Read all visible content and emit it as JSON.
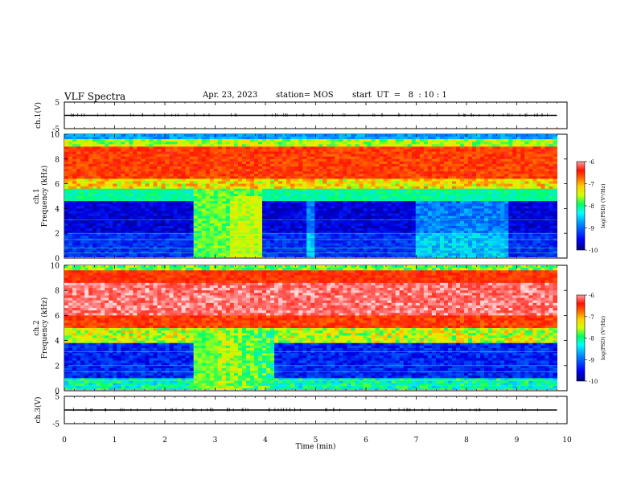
{
  "header": {
    "title": "VLF Spectra",
    "date": "Apr. 23, 2023",
    "station": "station= MOS",
    "start": "start  UT  =   8  : 10 : 1"
  },
  "chart_data": [
    {
      "type": "line",
      "panel": "ch1-voltage",
      "ylabel": "ch.1(V)",
      "ylim": [
        -5,
        5
      ],
      "yticks": [
        "5",
        "-5"
      ],
      "xlim": [
        0,
        10
      ],
      "series": [
        {
          "values_level": 0
        }
      ]
    },
    {
      "type": "heatmap",
      "panel": "ch1-spectrogram",
      "ylabel": "ch.1\nFrequency (kHz)",
      "ylabel_lines": [
        "ch.1",
        "Frequency (kHz)"
      ],
      "ylim": [
        0,
        10
      ],
      "yticks": [
        "0",
        "2",
        "4",
        "6",
        "8",
        "10"
      ],
      "xlim": [
        0,
        10
      ],
      "data_end_min": 9.8,
      "colorbar": {
        "label": "log(PSD) (V²/Hz)",
        "ticks": [
          "-6",
          "-7",
          "-8",
          "-9",
          "-10"
        ],
        "range": [
          -10,
          -6
        ]
      },
      "features": [
        {
          "from_min": 2.55,
          "to_min": 3.9,
          "description_level": -8.2
        }
      ]
    },
    {
      "type": "heatmap",
      "panel": "ch2-spectrogram",
      "ylabel": "ch.2\nFrequency (kHz)",
      "ylabel_lines": [
        "ch.2",
        "Frequency (kHz)"
      ],
      "ylim": [
        0,
        10
      ],
      "yticks": [
        "0",
        "2",
        "4",
        "6",
        "8",
        "10"
      ],
      "xlim": [
        0,
        10
      ],
      "data_end_min": 9.8,
      "colorbar": {
        "label": "log(PSD) (V²/Hz)",
        "ticks": [
          "-6",
          "-7",
          "-8",
          "-9",
          "-10"
        ],
        "range": [
          -10,
          -6
        ]
      }
    },
    {
      "type": "line",
      "panel": "ch3-voltage",
      "ylabel": "ch.3(V)",
      "ylim": [
        -5,
        5
      ],
      "yticks": [
        "5",
        "-5"
      ],
      "xlim": [
        0,
        10
      ],
      "xlabel": "Time  (min)",
      "xticks": [
        "0",
        "1",
        "2",
        "3",
        "4",
        "5",
        "6",
        "7",
        "8",
        "9",
        "10"
      ],
      "series": [
        {
          "values_level": 0
        }
      ]
    }
  ],
  "colors": {
    "scale": [
      "#00007a",
      "#0000d8",
      "#0060ff",
      "#00d0ff",
      "#00ff80",
      "#c8ff00",
      "#ffe000",
      "#ff8000",
      "#ff2000",
      "#ff8080",
      "#ffffff"
    ]
  }
}
